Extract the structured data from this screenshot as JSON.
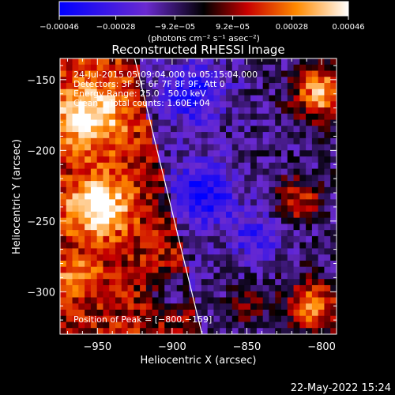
{
  "chart_data": {
    "type": "heatmap",
    "title": "Reconstructed RHESSI Image",
    "xlabel": "Heliocentric X (arcsec)",
    "ylabel": "Heliocentric Y (arcsec)",
    "xlim": [
      -975,
      -790
    ],
    "ylim": [
      -330,
      -135
    ],
    "xticks": [
      -950,
      -900,
      -850,
      -800
    ],
    "xtick_labels": [
      "−950",
      "−900",
      "−850",
      "−800"
    ],
    "yticks": [
      -150,
      -200,
      -250,
      -300
    ],
    "ytick_labels": [
      "−150",
      "−200",
      "−250",
      "−300"
    ],
    "colorbar": {
      "min": -0.00046,
      "max": 0.00046,
      "ticks": [
        -0.00046,
        -0.00028,
        -9.2e-05,
        9.2e-05,
        0.00028,
        0.00046
      ],
      "tick_labels": [
        "−0.00046",
        "−0.00028",
        "−9.2e−05",
        "9.2e−05",
        "0.00028",
        "0.00046"
      ],
      "units_label": "(photons cm⁻² s⁻¹ asec⁻²)"
    },
    "annotations": [
      "24-Jul-2015 05:09:04.000 to 05:15:04.000",
      "Detectors: 3F 5F 6F 7F 8F 9F, Att 0",
      "Energy Range: 25.0 - 50.0 keV",
      "Clean    Total counts: 1.60E+04"
    ],
    "peak_label": "Position of Peak = [−800,−159]",
    "peak_position": [
      -800,
      -159
    ],
    "limb_line": [
      [
        -925,
        -135
      ],
      [
        -880,
        -330
      ]
    ],
    "hot_regions": [
      {
        "x": -955,
        "y": -175,
        "r": 25,
        "v": 0.00036
      },
      {
        "x": -950,
        "y": -240,
        "r": 20,
        "v": 0.00042
      },
      {
        "x": -965,
        "y": -290,
        "r": 15,
        "v": 0.0002
      },
      {
        "x": -800,
        "y": -159,
        "r": 18,
        "v": 0.00046
      },
      {
        "x": -815,
        "y": -235,
        "r": 15,
        "v": 0.00028
      },
      {
        "x": -805,
        "y": -310,
        "r": 18,
        "v": 0.0004
      },
      {
        "x": -850,
        "y": -310,
        "r": 12,
        "v": 0.00018
      }
    ],
    "cold_regions": [
      {
        "x": -885,
        "y": -160,
        "r": 22,
        "v": -0.0003
      },
      {
        "x": -880,
        "y": -230,
        "r": 22,
        "v": -0.00034
      },
      {
        "x": -900,
        "y": -300,
        "r": 15,
        "v": -0.00024
      },
      {
        "x": -845,
        "y": -260,
        "r": 18,
        "v": -0.00022
      }
    ]
  },
  "footer": {
    "date": "22-May-2022 15:24"
  }
}
